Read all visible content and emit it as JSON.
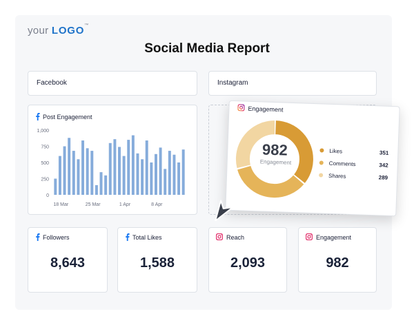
{
  "logo": {
    "prefix": "your",
    "brand": "LOGO",
    "tm": "™"
  },
  "title": "Social Media Report",
  "sections": {
    "facebook": "Facebook",
    "instagram": "Instagram"
  },
  "post_engagement": {
    "title": "Post Engagement",
    "accent": "#7ea8dc"
  },
  "instagram_engagement": {
    "title": "Engagement",
    "total": "982",
    "total_label": "Engagement",
    "legend": [
      {
        "label": "Likes",
        "value": "351",
        "color": "#d89b35"
      },
      {
        "label": "Comments",
        "value": "342",
        "color": "#e5b459"
      },
      {
        "label": "Shares",
        "value": "289",
        "color": "#f2d6a2"
      }
    ]
  },
  "metrics": [
    {
      "label": "Followers",
      "value": "8,643",
      "icon": "facebook-icon"
    },
    {
      "label": "Total Likes",
      "value": "1,588",
      "icon": "facebook-icon"
    },
    {
      "label": "Reach",
      "value": "2,093",
      "icon": "instagram-icon"
    },
    {
      "label": "Engagement",
      "value": "982",
      "icon": "instagram-icon"
    }
  ],
  "chart_data": {
    "type": "bar",
    "title": "Post Engagement",
    "y_ticks": [
      "1,000",
      "750",
      "500",
      "250",
      "0"
    ],
    "x_ticks": [
      "18 Mar",
      "25 Mar",
      "1 Apr",
      "8 Apr"
    ],
    "ylim": [
      0,
      1000
    ],
    "values": [
      250,
      600,
      750,
      880,
      680,
      550,
      840,
      720,
      680,
      150,
      350,
      300,
      800,
      860,
      740,
      600,
      850,
      920,
      640,
      550,
      840,
      500,
      630,
      730,
      400,
      680,
      620,
      500,
      700
    ],
    "color": "#86acdb"
  }
}
